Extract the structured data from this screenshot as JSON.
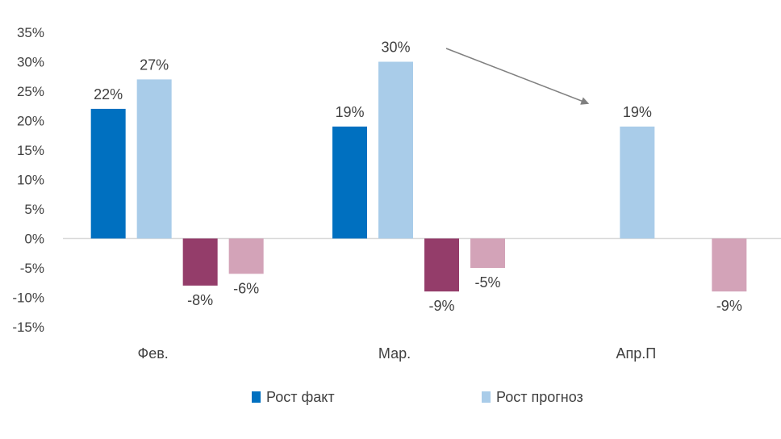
{
  "chart_data": {
    "type": "bar",
    "title": "",
    "xlabel": "",
    "ylabel": "",
    "categories": [
      "Фев.",
      "Мар.",
      "Апр.П"
    ],
    "ylim": [
      -15,
      35
    ],
    "ytick_step": 5,
    "ytick_suffix": "%",
    "grid": false,
    "legend_position": "bottom",
    "series": [
      {
        "name": "Рост факт",
        "values": [
          22,
          19,
          null
        ],
        "labels": [
          "22%",
          "19%",
          ""
        ],
        "color": "#0070c0",
        "in_legend": true
      },
      {
        "name": "Рост прогноз",
        "values": [
          27,
          30,
          19
        ],
        "labels": [
          "27%",
          "30%",
          "19%"
        ],
        "color": "#a9cce9",
        "in_legend": true
      },
      {
        "name": "",
        "values": [
          -8,
          -9,
          null
        ],
        "labels": [
          "-8%",
          "-9%",
          ""
        ],
        "color": "#943d6a",
        "in_legend": false
      },
      {
        "name": "",
        "values": [
          -6,
          -5,
          -9
        ],
        "labels": [
          "-6%",
          "-5%",
          "-9%"
        ],
        "color": "#d3a3b8",
        "in_legend": false
      }
    ],
    "annotations": [
      {
        "type": "arrow",
        "from_category": "Мар.",
        "to_category": "Апр.П",
        "color": "#808080"
      }
    ]
  }
}
